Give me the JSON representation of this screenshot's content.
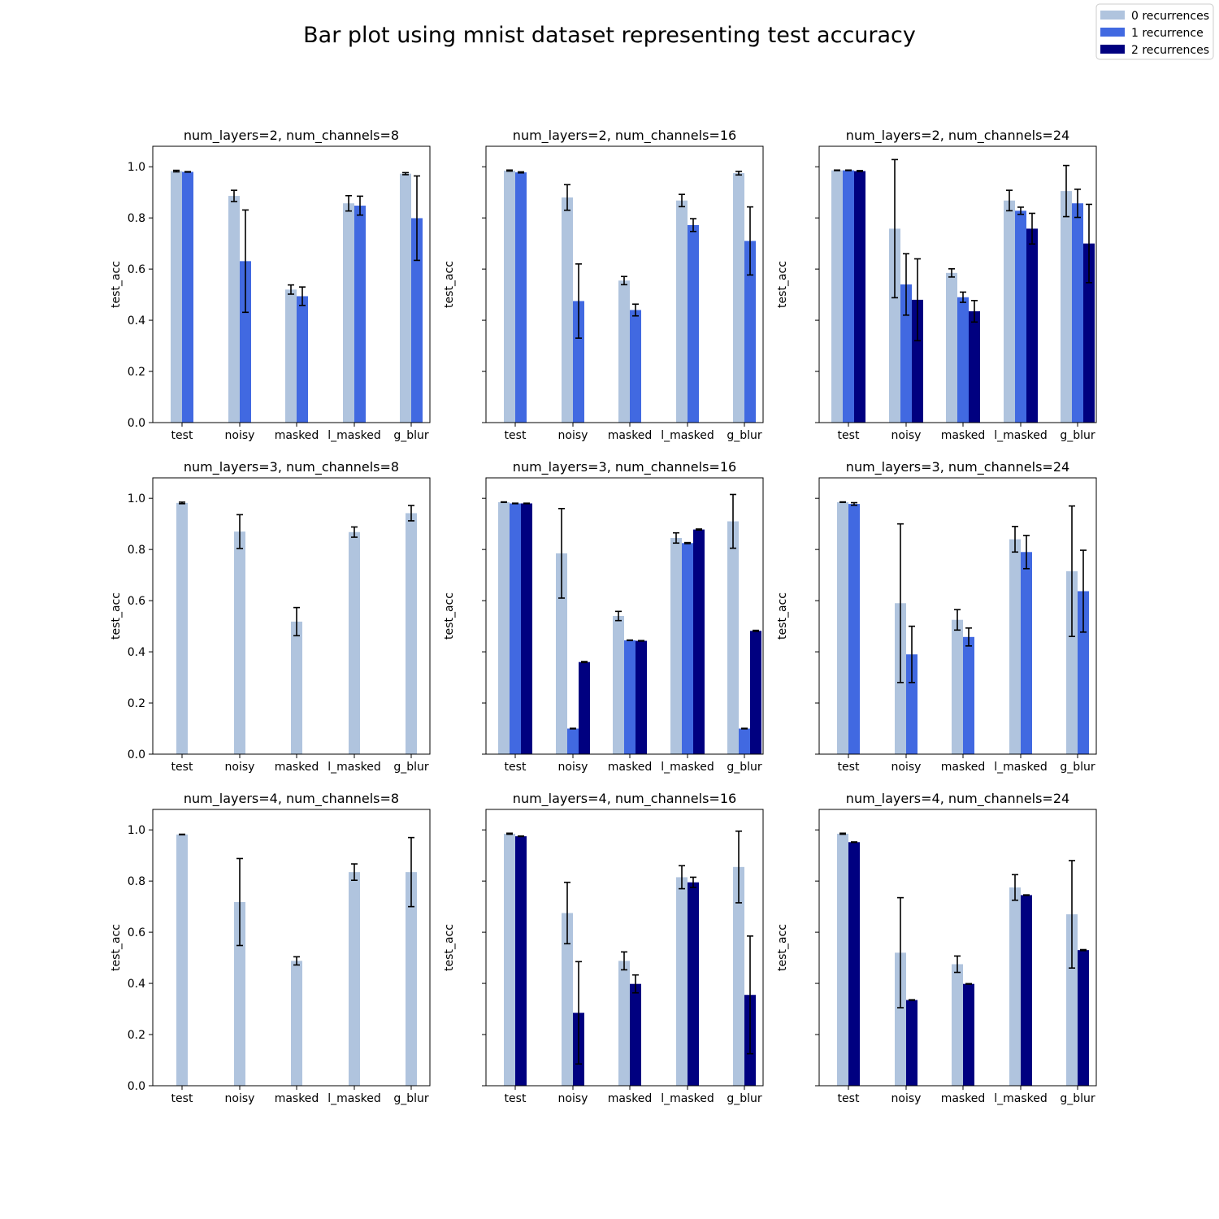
{
  "title": "Bar plot using mnist dataset representing test accuracy",
  "colors": {
    "0 recurrences": "#b0c4de",
    "1 recurrence": "#4169e1",
    "2 recurrences": "#000080"
  },
  "legend": {
    "placement": "top-right",
    "items": [
      "0 recurrences",
      "1 recurrence",
      "2 recurrences"
    ]
  },
  "chart_data": [
    {
      "type": "bar",
      "title": "num_layers=2, num_channels=8",
      "ylabel": "test_acc",
      "ylim": [
        0,
        1.08
      ],
      "yticks": [
        "0.0",
        "0.2",
        "0.4",
        "0.6",
        "0.8",
        "1.0"
      ],
      "categories": [
        "test",
        "noisy",
        "masked",
        "l_masked",
        "g_blur"
      ],
      "series": [
        {
          "name": "0 recurrences",
          "values": [
            0.983,
            0.886,
            0.52,
            0.857,
            0.973
          ],
          "errors": [
            0.003,
            0.022,
            0.018,
            0.03,
            0.004
          ]
        },
        {
          "name": "1 recurrence",
          "values": [
            0.98,
            0.631,
            0.494,
            0.848,
            0.799
          ],
          "errors": [
            0.001,
            0.2,
            0.036,
            0.037,
            0.165
          ]
        }
      ]
    },
    {
      "type": "bar",
      "title": "num_layers=2, num_channels=16",
      "ylabel": "test_acc",
      "ylim": [
        0,
        1.08
      ],
      "yticks": [
        "",
        "",
        "",
        "",
        "",
        ""
      ],
      "categories": [
        "test",
        "noisy",
        "masked",
        "l_masked",
        "g_blur"
      ],
      "series": [
        {
          "name": "0 recurrences",
          "values": [
            0.985,
            0.88,
            0.555,
            0.868,
            0.975
          ],
          "errors": [
            0.002,
            0.05,
            0.016,
            0.024,
            0.007
          ]
        },
        {
          "name": "1 recurrence",
          "values": [
            0.978,
            0.475,
            0.44,
            0.772,
            0.71
          ],
          "errors": [
            0.002,
            0.145,
            0.023,
            0.025,
            0.133
          ]
        }
      ]
    },
    {
      "type": "bar",
      "title": "num_layers=2, num_channels=24",
      "ylabel": "test_acc",
      "ylim": [
        0,
        1.08
      ],
      "yticks": [
        "",
        "",
        "",
        "",
        "",
        ""
      ],
      "categories": [
        "test",
        "noisy",
        "masked",
        "l_masked",
        "g_blur"
      ],
      "series": [
        {
          "name": "0 recurrences",
          "values": [
            0.986,
            0.758,
            0.585,
            0.868,
            0.905
          ],
          "errors": [
            0.001,
            0.27,
            0.016,
            0.04,
            0.1
          ]
        },
        {
          "name": "1 recurrence",
          "values": [
            0.986,
            0.54,
            0.49,
            0.828,
            0.857
          ],
          "errors": [
            0.001,
            0.12,
            0.02,
            0.014,
            0.055
          ]
        },
        {
          "name": "2 recurrences",
          "values": [
            0.983,
            0.48,
            0.435,
            0.758,
            0.7
          ],
          "errors": [
            0.002,
            0.16,
            0.042,
            0.06,
            0.153
          ]
        }
      ]
    },
    {
      "type": "bar",
      "title": "num_layers=3, num_channels=8",
      "ylabel": "test_acc",
      "ylim": [
        0,
        1.08
      ],
      "yticks": [
        "0.0",
        "0.2",
        "0.4",
        "0.6",
        "0.8",
        "1.0"
      ],
      "categories": [
        "test",
        "noisy",
        "masked",
        "l_masked",
        "g_blur"
      ],
      "series": [
        {
          "name": "0 recurrences",
          "values": [
            0.982,
            0.87,
            0.518,
            0.868,
            0.942
          ],
          "errors": [
            0.003,
            0.066,
            0.055,
            0.02,
            0.03
          ]
        }
      ]
    },
    {
      "type": "bar",
      "title": "num_layers=3, num_channels=16",
      "ylabel": "test_acc",
      "ylim": [
        0,
        1.08
      ],
      "yticks": [
        "",
        "",
        "",
        "",
        "",
        ""
      ],
      "categories": [
        "test",
        "noisy",
        "masked",
        "l_masked",
        "g_blur"
      ],
      "series": [
        {
          "name": "0 recurrences",
          "values": [
            0.985,
            0.785,
            0.54,
            0.845,
            0.91
          ],
          "errors": [
            0.001,
            0.175,
            0.018,
            0.02,
            0.105
          ]
        },
        {
          "name": "1 recurrence",
          "values": [
            0.98,
            0.1,
            0.445,
            0.825,
            0.1
          ],
          "errors": [
            0.001,
            0.001,
            0.001,
            0.002,
            0.001
          ]
        },
        {
          "name": "2 recurrences",
          "values": [
            0.98,
            0.36,
            0.443,
            0.878,
            0.482
          ],
          "errors": [
            0.001,
            0.002,
            0.001,
            0.002,
            0.002
          ]
        }
      ]
    },
    {
      "type": "bar",
      "title": "num_layers=3, num_channels=24",
      "ylabel": "test_acc",
      "ylim": [
        0,
        1.08
      ],
      "yticks": [
        "",
        "",
        "",
        "",
        "",
        ""
      ],
      "categories": [
        "test",
        "noisy",
        "masked",
        "l_masked",
        "g_blur"
      ],
      "series": [
        {
          "name": "0 recurrences",
          "values": [
            0.985,
            0.59,
            0.525,
            0.84,
            0.715
          ],
          "errors": [
            0.001,
            0.31,
            0.04,
            0.05,
            0.255
          ]
        },
        {
          "name": "1 recurrence",
          "values": [
            0.978,
            0.39,
            0.458,
            0.79,
            0.637
          ],
          "errors": [
            0.005,
            0.11,
            0.035,
            0.065,
            0.16
          ]
        }
      ]
    },
    {
      "type": "bar",
      "title": "num_layers=4, num_channels=8",
      "ylabel": "test_acc",
      "ylim": [
        0,
        1.08
      ],
      "yticks": [
        "0.0",
        "0.2",
        "0.4",
        "0.6",
        "0.8",
        "1.0"
      ],
      "categories": [
        "test",
        "noisy",
        "masked",
        "l_masked",
        "g_blur"
      ],
      "series": [
        {
          "name": "0 recurrences",
          "values": [
            0.982,
            0.718,
            0.488,
            0.835,
            0.835
          ],
          "errors": [
            0.001,
            0.17,
            0.016,
            0.032,
            0.135
          ]
        }
      ]
    },
    {
      "type": "bar",
      "title": "num_layers=4, num_channels=16",
      "ylabel": "test_acc",
      "ylim": [
        0,
        1.08
      ],
      "yticks": [
        "",
        "",
        "",
        "",
        "",
        ""
      ],
      "categories": [
        "test",
        "noisy",
        "masked",
        "l_masked",
        "g_blur"
      ],
      "series": [
        {
          "name": "0 recurrences",
          "values": [
            0.985,
            0.675,
            0.488,
            0.815,
            0.855
          ],
          "errors": [
            0.002,
            0.12,
            0.035,
            0.045,
            0.14
          ]
        },
        {
          "name": "2 recurrences",
          "values": [
            0.975,
            0.285,
            0.398,
            0.795,
            0.355
          ],
          "errors": [
            0.001,
            0.2,
            0.035,
            0.02,
            0.23
          ]
        }
      ]
    },
    {
      "type": "bar",
      "title": "num_layers=4, num_channels=24",
      "ylabel": "test_acc",
      "ylim": [
        0,
        1.08
      ],
      "yticks": [
        "",
        "",
        "",
        "",
        "",
        ""
      ],
      "categories": [
        "test",
        "noisy",
        "masked",
        "l_masked",
        "g_blur"
      ],
      "series": [
        {
          "name": "0 recurrences",
          "values": [
            0.985,
            0.52,
            0.475,
            0.775,
            0.67
          ],
          "errors": [
            0.002,
            0.215,
            0.032,
            0.05,
            0.21
          ]
        },
        {
          "name": "2 recurrences",
          "values": [
            0.952,
            0.335,
            0.398,
            0.745,
            0.53
          ],
          "errors": [
            0.001,
            0.001,
            0.001,
            0.001,
            0.002
          ]
        }
      ]
    }
  ]
}
